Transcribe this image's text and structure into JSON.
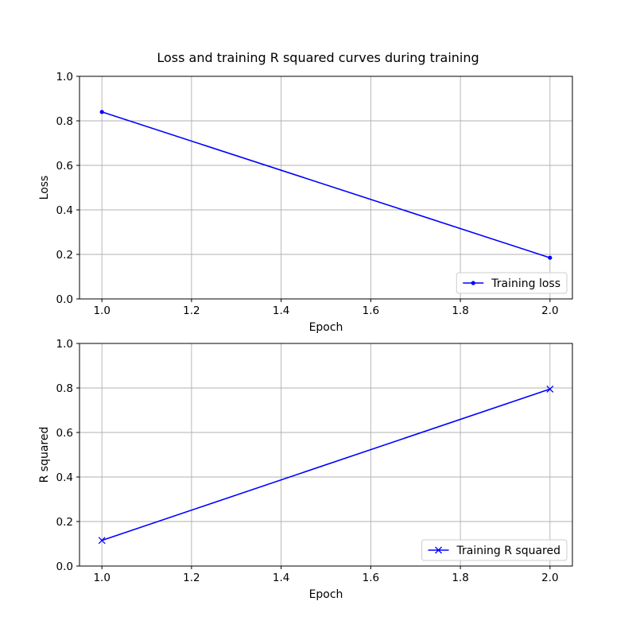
{
  "figure": {
    "title": "Loss and training R squared curves during training"
  },
  "chart_data": [
    {
      "type": "line",
      "x": [
        1.0,
        2.0
      ],
      "series": [
        {
          "name": "Training loss",
          "values": [
            0.84,
            0.185
          ],
          "color": "#0000ff",
          "marker": "dot"
        }
      ],
      "xlabel": "Epoch",
      "ylabel": "Loss",
      "xlim": [
        0.95,
        2.05
      ],
      "ylim": [
        0.0,
        1.0
      ],
      "xticks": [
        1.0,
        1.2,
        1.4,
        1.6,
        1.8,
        2.0
      ],
      "yticks": [
        0.0,
        0.2,
        0.4,
        0.6,
        0.8,
        1.0
      ],
      "xtick_labels": [
        "1.0",
        "1.2",
        "1.4",
        "1.6",
        "1.8",
        "2.0"
      ],
      "ytick_labels": [
        "0.0",
        "0.2",
        "0.4",
        "0.6",
        "0.8",
        "1.0"
      ],
      "grid": true,
      "legend_position": "lower-right"
    },
    {
      "type": "line",
      "x": [
        1.0,
        2.0
      ],
      "series": [
        {
          "name": "Training R squared",
          "values": [
            0.115,
            0.795
          ],
          "color": "#0000ff",
          "marker": "x"
        }
      ],
      "xlabel": "Epoch",
      "ylabel": "R squared",
      "xlim": [
        0.95,
        2.05
      ],
      "ylim": [
        0.0,
        1.0
      ],
      "xticks": [
        1.0,
        1.2,
        1.4,
        1.6,
        1.8,
        2.0
      ],
      "yticks": [
        0.0,
        0.2,
        0.4,
        0.6,
        0.8,
        1.0
      ],
      "xtick_labels": [
        "1.0",
        "1.2",
        "1.4",
        "1.6",
        "1.8",
        "2.0"
      ],
      "ytick_labels": [
        "0.0",
        "0.2",
        "0.4",
        "0.6",
        "0.8",
        "1.0"
      ],
      "grid": true,
      "legend_position": "lower-right"
    }
  ]
}
